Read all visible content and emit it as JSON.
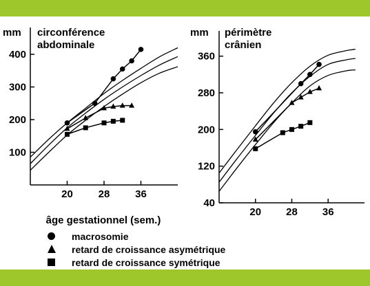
{
  "colors": {
    "band": "#9dc72b",
    "ink": "#000000"
  },
  "xlabel": "âge gestationnel (sem.)",
  "legend": [
    {
      "symbol": "circle",
      "label": "macrosomie"
    },
    {
      "symbol": "triangle",
      "label": "retard de croissance asymétrique"
    },
    {
      "symbol": "square",
      "label": "retard de croissance symétrique"
    }
  ],
  "chart_data": [
    {
      "type": "line",
      "title": "circonférence abdominale",
      "title_lines": [
        "circonférence",
        "abdominale"
      ],
      "ylabel": "mm",
      "xlim": [
        12,
        44
      ],
      "ylim": [
        0,
        440
      ],
      "xticks": [
        20,
        28,
        36
      ],
      "yticks": [
        100,
        200,
        300,
        400
      ],
      "reference_curves": [
        {
          "x": [
            12,
            16,
            20,
            24,
            28,
            32,
            36,
            40,
            44
          ],
          "y": [
            85,
            140,
            190,
            235,
            280,
            320,
            357,
            392,
            420
          ]
        },
        {
          "x": [
            12,
            16,
            20,
            24,
            28,
            32,
            36,
            40,
            44
          ],
          "y": [
            65,
            122,
            175,
            220,
            262,
            300,
            335,
            367,
            393
          ]
        },
        {
          "x": [
            12,
            16,
            20,
            24,
            28,
            32,
            36,
            40,
            44
          ],
          "y": [
            45,
            100,
            153,
            198,
            240,
            278,
            313,
            342,
            362
          ]
        }
      ],
      "series": [
        {
          "marker": "circle",
          "x": [
            20,
            26,
            30,
            32,
            34,
            36
          ],
          "y": [
            190,
            250,
            325,
            355,
            380,
            415
          ]
        },
        {
          "marker": "triangle",
          "x": [
            20,
            24,
            28,
            30,
            32,
            34
          ],
          "y": [
            172,
            205,
            235,
            240,
            243,
            243
          ]
        },
        {
          "marker": "square",
          "x": [
            20,
            24,
            28,
            30,
            32
          ],
          "y": [
            155,
            175,
            190,
            195,
            198
          ]
        }
      ]
    },
    {
      "type": "line",
      "title": "périmètre crânien",
      "title_lines": [
        "périmètre",
        "crânien"
      ],
      "ylabel": "mm",
      "xlim": [
        12,
        44
      ],
      "ylim": [
        40,
        385
      ],
      "xticks": [
        20,
        28,
        36
      ],
      "yticks": [
        40,
        120,
        200,
        280,
        360
      ],
      "reference_curves": [
        {
          "x": [
            12,
            16,
            20,
            24,
            28,
            32,
            36,
            40,
            42
          ],
          "y": [
            105,
            157,
            208,
            258,
            302,
            338,
            362,
            372,
            375
          ]
        },
        {
          "x": [
            12,
            16,
            20,
            24,
            28,
            32,
            36,
            40,
            42
          ],
          "y": [
            85,
            137,
            187,
            236,
            280,
            316,
            342,
            352,
            355
          ]
        },
        {
          "x": [
            12,
            16,
            20,
            24,
            28,
            32,
            36,
            40,
            42
          ],
          "y": [
            65,
            117,
            167,
            215,
            258,
            295,
            318,
            328,
            330
          ]
        }
      ],
      "series": [
        {
          "marker": "circle",
          "x": [
            20,
            30,
            32,
            34
          ],
          "y": [
            195,
            300,
            320,
            342
          ]
        },
        {
          "marker": "triangle",
          "x": [
            20,
            28,
            30,
            32,
            34
          ],
          "y": [
            178,
            258,
            270,
            282,
            290
          ]
        },
        {
          "marker": "square",
          "x": [
            20,
            26,
            28,
            30,
            32
          ],
          "y": [
            158,
            193,
            200,
            207,
            215
          ]
        }
      ]
    }
  ]
}
